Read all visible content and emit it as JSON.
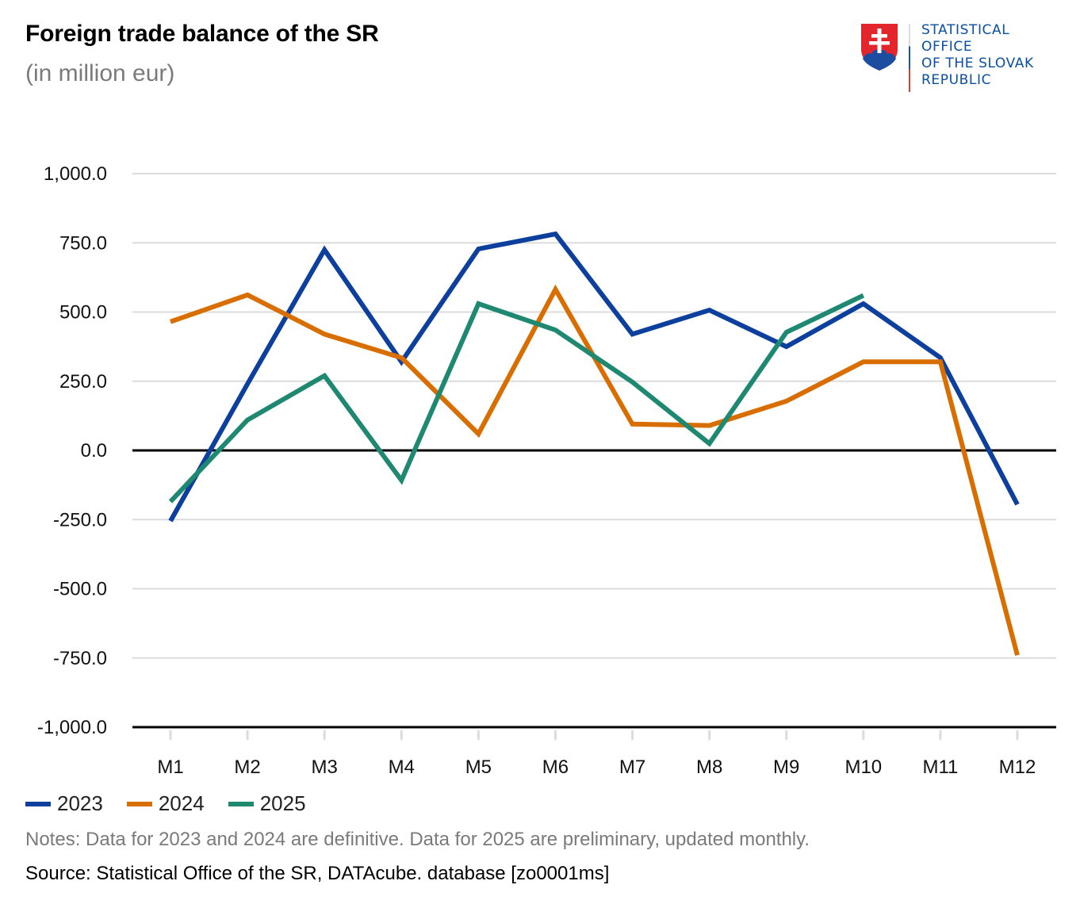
{
  "header": {
    "title": "Foreign trade balance of the SR",
    "subtitle": "(in million eur)"
  },
  "logo": {
    "icon": "slovak-coat-of-arms-icon",
    "lines": [
      "STATISTICAL",
      "OFFICE",
      "OF THE SLOVAK",
      "REPUBLIC"
    ]
  },
  "footer": {
    "notes": "Notes: Data for 2023 and 2024 are definitive. Data for 2025 are preliminary, updated monthly.",
    "source": "Source: Statistical Office of the SR, DATAcube. database [zo0001ms]"
  },
  "chart_data": {
    "type": "line",
    "title": "Foreign trade balance of the SR",
    "subtitle": "(in million eur)",
    "xlabel": "",
    "ylabel": "",
    "categories": [
      "M1",
      "M2",
      "M3",
      "M4",
      "M5",
      "M6",
      "M7",
      "M8",
      "M9",
      "M10",
      "M11",
      "M12"
    ],
    "ylim": [
      -1000,
      1000
    ],
    "yticks": [
      1000,
      750,
      500,
      250,
      0,
      -250,
      -500,
      -750,
      -1000
    ],
    "ytick_labels": [
      "1,000.0",
      "750.0",
      "500.0",
      "250.0",
      "0.0",
      "-250.0",
      "-500.0",
      "-750.0",
      "-1,000.0"
    ],
    "grid": true,
    "legend_position": "bottom-left",
    "series": [
      {
        "name": "2023",
        "color": "#0d3f9c",
        "values": [
          -255,
          240,
          725,
          320,
          728,
          782,
          420,
          507,
          375,
          530,
          335,
          -195
        ]
      },
      {
        "name": "2024",
        "color": "#d96e00",
        "values": [
          465,
          562,
          420,
          335,
          60,
          582,
          95,
          90,
          178,
          320,
          320,
          -740
        ]
      },
      {
        "name": "2025",
        "color": "#1f8870",
        "values": [
          -185,
          110,
          270,
          -108,
          530,
          435,
          247,
          25,
          427,
          560,
          null,
          null
        ]
      }
    ]
  }
}
